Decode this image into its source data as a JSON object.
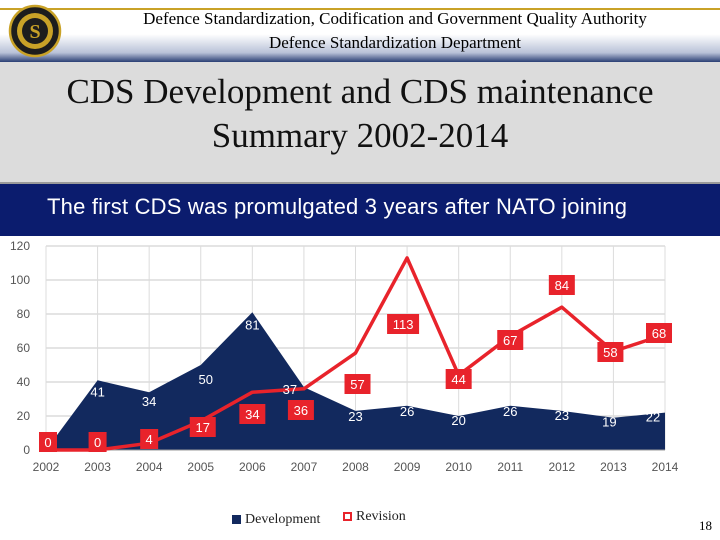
{
  "header": {
    "line1": "Defence Standardization, Codification and Government Quality Authority",
    "line2": "Defence Standardization Department"
  },
  "title": {
    "line1": "CDS Development and CDS maintenance",
    "line2": "Summary 2002-2014"
  },
  "subtitle": "The first CDS was promulgated 3 years after NATO joining",
  "colors": {
    "development": "#12295e",
    "revision": "#e8232b",
    "header_band": "#0b1c6e"
  },
  "chart_data": {
    "type": "area",
    "x": [
      "2002",
      "2003",
      "2004",
      "2005",
      "2006",
      "2007",
      "2008",
      "2009",
      "2010",
      "2011",
      "2012",
      "2013",
      "2014"
    ],
    "ylim": [
      0,
      120
    ],
    "yticks": [
      "0",
      "20",
      "40",
      "60",
      "80",
      "100",
      "120"
    ],
    "grid": true,
    "series": [
      {
        "name": "Development",
        "type": "area",
        "values": [
          0,
          41,
          34,
          50,
          81,
          37,
          23,
          26,
          20,
          26,
          23,
          19,
          22
        ],
        "labels": [
          "",
          "41",
          "34",
          "50",
          "81",
          "37",
          "23",
          "26",
          "20",
          "26",
          "23",
          "19",
          "22"
        ]
      },
      {
        "name": "Revision",
        "type": "line",
        "values": [
          0,
          0,
          4,
          17,
          34,
          36,
          57,
          113,
          44,
          67,
          84,
          58,
          68
        ],
        "labels": [
          "0",
          "0",
          "4",
          "17",
          "34",
          "36",
          "57",
          "113",
          "44",
          "67",
          "84",
          "58",
          "68"
        ]
      }
    ],
    "legend": [
      "Development",
      "Revision"
    ]
  },
  "page_number": "18"
}
